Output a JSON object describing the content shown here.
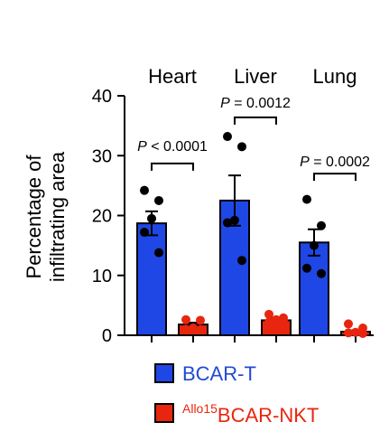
{
  "chart_data": {
    "type": "bar",
    "categories": [
      "Heart",
      "Liver",
      "Lung"
    ],
    "ylabel_lines": [
      "Percentage of",
      "infiltrating area"
    ],
    "ylim": [
      0,
      40
    ],
    "yticks": [
      "0",
      "10",
      "20",
      "30",
      "40"
    ],
    "series": [
      {
        "name": "BCAR-T",
        "color": "#1f47e6",
        "values": [
          18.7,
          22.5,
          15.5
        ],
        "sem": [
          2.0,
          4.2,
          2.2
        ],
        "points": [
          [
            24.2,
            22.5,
            19.5,
            17.2,
            13.8
          ],
          [
            33.2,
            31.5,
            19.2,
            18.8,
            12.5
          ],
          [
            22.7,
            18.3,
            15.0,
            11.2,
            10.3
          ]
        ]
      },
      {
        "name_sup": "Allo15",
        "name": "BCAR-NKT",
        "color": "#e8260f",
        "values": [
          1.8,
          2.5,
          0.6
        ],
        "sem": [
          0.3,
          0.3,
          0.2
        ],
        "points": [
          [
            2.6,
            2.5,
            1.2,
            1.0,
            0.9
          ],
          [
            3.5,
            2.9,
            2.6,
            2.2,
            2.4
          ],
          [
            1.9,
            1.2,
            0.5,
            0.4,
            0.3
          ]
        ]
      }
    ],
    "annotations": [
      "P < 0.0001",
      "P = 0.0012",
      "P = 0.0002"
    ]
  }
}
